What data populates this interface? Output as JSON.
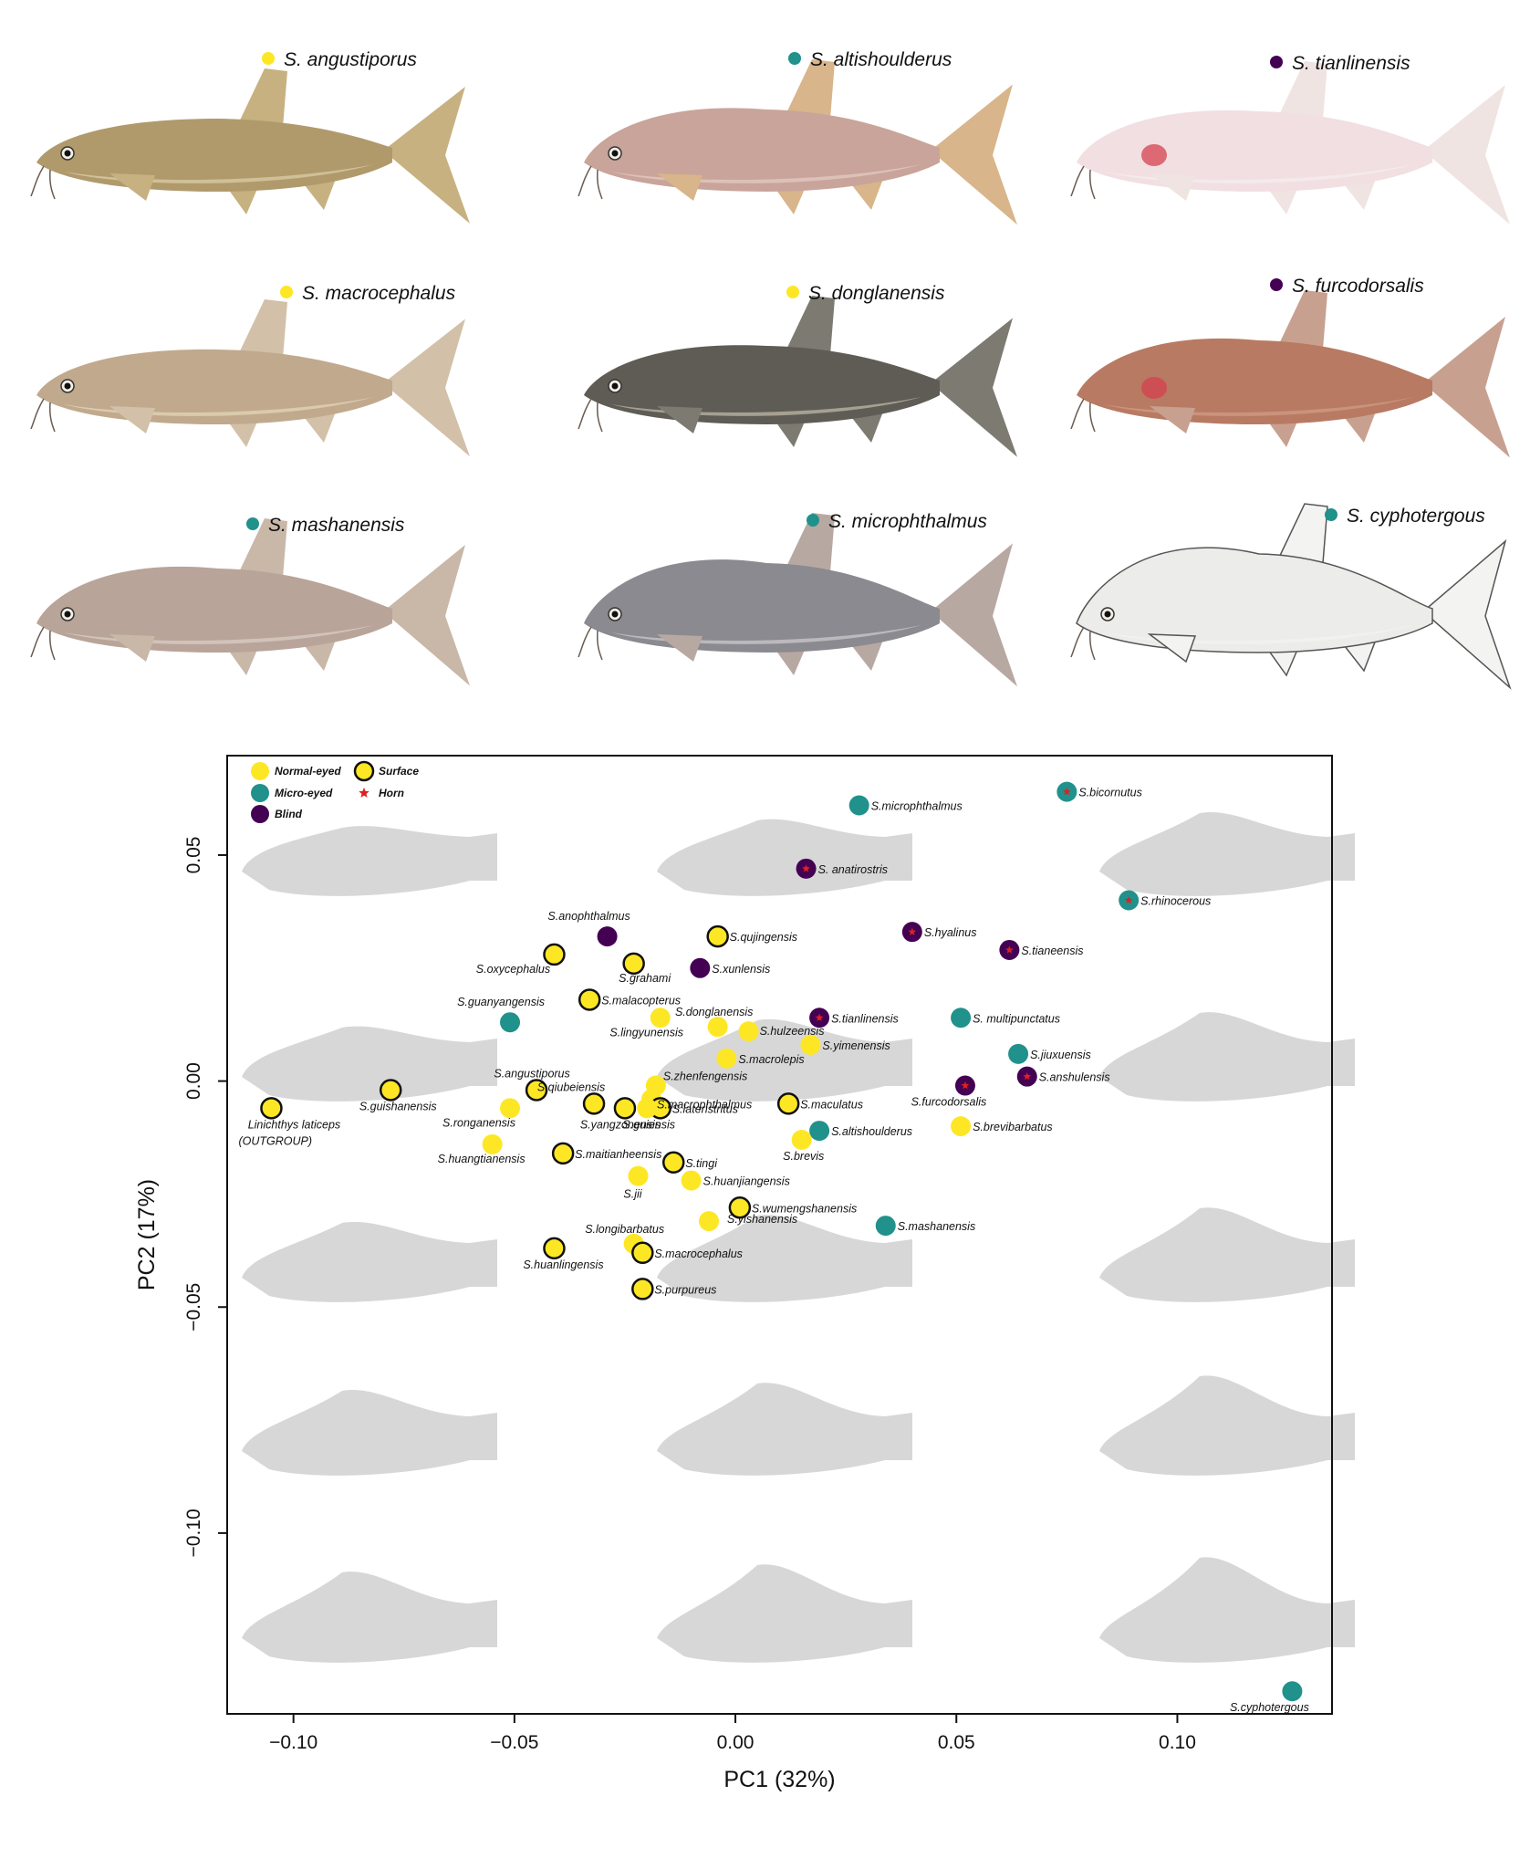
{
  "gallery": [
    {
      "id": "angustiporus",
      "name": "S. angustiporus",
      "status": "normal",
      "style": "photo",
      "body": "#b09a6c",
      "fin": "#c7b180",
      "belly": "#d8c9a2",
      "eye": true,
      "deep": 0.0
    },
    {
      "id": "altishoulderus",
      "name": "S. altishoulderus",
      "status": "micro",
      "style": "photo",
      "body": "#c9a49a",
      "fin": "#d8b58a",
      "belly": "#e2c8c0",
      "eye": true,
      "deep": 0.25
    },
    {
      "id": "tianlinensis",
      "name": "S. tianlinensis",
      "status": "blind",
      "style": "photo",
      "body": "#f1dfe1",
      "fin": "#efe4e2",
      "belly": "#f6ecee",
      "eye": false,
      "deep": 0.2
    },
    {
      "id": "macrocephalus",
      "name": "S. macrocephalus",
      "status": "normal",
      "style": "photo",
      "body": "#c1a98d",
      "fin": "#d2c0a8",
      "belly": "#e0d2b6",
      "eye": true,
      "deep": 0.05
    },
    {
      "id": "donglanensis",
      "name": "S. donglanensis",
      "status": "normal",
      "style": "photo",
      "body": "#5e5c55",
      "fin": "#7d7a72",
      "belly": "#b8b2a2",
      "eye": true,
      "deep": 0.15
    },
    {
      "id": "furcodorsalis",
      "name": "S. furcodorsalis",
      "status": "blind",
      "style": "photo",
      "body": "#b87a62",
      "fin": "#c8a090",
      "belly": "#cf9a85",
      "eye": false,
      "deep": 0.3
    },
    {
      "id": "mashanensis",
      "name": "S. mashanensis",
      "status": "micro",
      "style": "photo",
      "body": "#b9a49a",
      "fin": "#c9b7a8",
      "belly": "#d8cbc2",
      "eye": true,
      "deep": 0.3
    },
    {
      "id": "microphthalmus",
      "name": "S. microphthalmus",
      "status": "micro",
      "style": "photo",
      "body": "#8a8a90",
      "fin": "#b8a8a2",
      "belly": "#c8c4c8",
      "eye": true,
      "deep": 0.45
    },
    {
      "id": "cyphotergous",
      "name": "S. cyphotergous",
      "status": "micro",
      "style": "drawing",
      "body": "#ececea",
      "fin": "#f3f3f1",
      "belly": "#f2f2f0",
      "eye": true,
      "deep": 0.7
    }
  ],
  "legend": {
    "normal": "Normal-eyed",
    "micro": "Micro-eyed",
    "blind": "Blind",
    "surface": "Surface",
    "horn": "Horn"
  },
  "colors": {
    "normal": "#fde725",
    "micro": "#21918c",
    "blind": "#440154",
    "horn": "#e02020",
    "outline": "#111111",
    "shape": "#d7d7d7"
  },
  "chart_data": {
    "type": "scatter",
    "xlabel": "PC1 (32%)",
    "ylabel": "PC2 (17%)",
    "xlim": [
      -0.115,
      0.135
    ],
    "ylim": [
      -0.14,
      0.072
    ],
    "xticks": [
      -0.1,
      -0.05,
      0.0,
      0.05,
      0.1
    ],
    "xtick_labels": [
      "−0.10",
      "−0.05",
      "0.00",
      "0.05",
      "0.10"
    ],
    "yticks": [
      -0.1,
      -0.05,
      0.0,
      0.05
    ],
    "ytick_labels": [
      "−0.10",
      "−0.05",
      "0.00",
      "0.05"
    ],
    "grid": false,
    "legend_position": "top-left",
    "points": [
      {
        "label": "S.microphthalmus",
        "x": 0.028,
        "y": 0.061,
        "type": "micro",
        "surface": false,
        "horn": false
      },
      {
        "label": "S.bicornutus",
        "x": 0.075,
        "y": 0.064,
        "type": "micro",
        "surface": false,
        "horn": true
      },
      {
        "label": "S. anatirostris",
        "x": 0.016,
        "y": 0.047,
        "type": "blind",
        "surface": false,
        "horn": true
      },
      {
        "label": "S.rhinocerous",
        "x": 0.089,
        "y": 0.04,
        "type": "micro",
        "surface": false,
        "horn": true
      },
      {
        "label": "S.anophthalmus",
        "x": -0.029,
        "y": 0.032,
        "type": "blind",
        "surface": false,
        "horn": false
      },
      {
        "label": "S.qujingensis",
        "x": -0.004,
        "y": 0.032,
        "type": "normal",
        "surface": true,
        "horn": false
      },
      {
        "label": "S.hyalinus",
        "x": 0.04,
        "y": 0.033,
        "type": "blind",
        "surface": false,
        "horn": true
      },
      {
        "label": "S.tianeensis",
        "x": 0.062,
        "y": 0.029,
        "type": "blind",
        "surface": false,
        "horn": true
      },
      {
        "label": "S.oxycephalus",
        "x": -0.041,
        "y": 0.028,
        "type": "normal",
        "surface": true,
        "horn": false
      },
      {
        "label": "S.grahami",
        "x": -0.023,
        "y": 0.026,
        "type": "normal",
        "surface": true,
        "horn": false
      },
      {
        "label": "S.xunlensis",
        "x": -0.008,
        "y": 0.025,
        "type": "blind",
        "surface": false,
        "horn": false
      },
      {
        "label": "S.malacopterus",
        "x": -0.033,
        "y": 0.018,
        "type": "normal",
        "surface": true,
        "horn": false
      },
      {
        "label": "S.guanyangensis",
        "x": -0.051,
        "y": 0.013,
        "type": "micro",
        "surface": false,
        "horn": false
      },
      {
        "label": "S.lingyunensis",
        "x": -0.017,
        "y": 0.014,
        "type": "normal",
        "surface": false,
        "horn": false
      },
      {
        "label": "S.donglanensis",
        "x": -0.004,
        "y": 0.012,
        "type": "normal",
        "surface": false,
        "horn": false
      },
      {
        "label": "S.hulzeensis",
        "x": 0.003,
        "y": 0.011,
        "type": "normal",
        "surface": false,
        "horn": false
      },
      {
        "label": "S.tianlinensis",
        "x": 0.019,
        "y": 0.014,
        "type": "blind",
        "surface": false,
        "horn": true
      },
      {
        "label": "S. multipunctatus",
        "x": 0.051,
        "y": 0.014,
        "type": "micro",
        "surface": false,
        "horn": false
      },
      {
        "label": "S.yimenensis",
        "x": 0.017,
        "y": 0.008,
        "type": "normal",
        "surface": false,
        "horn": false
      },
      {
        "label": "S.macrolepis",
        "x": -0.002,
        "y": 0.005,
        "type": "normal",
        "surface": false,
        "horn": false
      },
      {
        "label": "S.jiuxuensis",
        "x": 0.064,
        "y": 0.006,
        "type": "micro",
        "surface": false,
        "horn": false
      },
      {
        "label": "S.anshulensis",
        "x": 0.066,
        "y": 0.001,
        "type": "blind",
        "surface": false,
        "horn": true
      },
      {
        "label": "S.furcodorsalis",
        "x": 0.052,
        "y": -0.001,
        "type": "blind",
        "surface": false,
        "horn": true
      },
      {
        "label": "S.guishanensis",
        "x": -0.078,
        "y": -0.002,
        "type": "normal",
        "surface": true,
        "horn": false
      },
      {
        "label": "S.angustiporus",
        "x": -0.045,
        "y": -0.002,
        "type": "normal",
        "surface": true,
        "horn": false
      },
      {
        "label": "S.zhenfengensis",
        "x": -0.018,
        "y": -0.001,
        "type": "normal",
        "surface": false,
        "horn": false
      },
      {
        "label": "S.qiubeiensis",
        "x": -0.032,
        "y": -0.005,
        "type": "normal",
        "surface": true,
        "horn": false
      },
      {
        "label": "S.macrophthalmus",
        "x": -0.019,
        "y": -0.004,
        "type": "normal",
        "surface": false,
        "horn": false
      },
      {
        "label": "S.lateristritus",
        "x": -0.017,
        "y": -0.006,
        "type": "normal",
        "surface": true,
        "horn": false
      },
      {
        "label": "S.maculatus",
        "x": 0.012,
        "y": -0.005,
        "type": "normal",
        "surface": true,
        "horn": false
      },
      {
        "label": "S.yangzonensis",
        "x": -0.025,
        "y": -0.006,
        "type": "normal",
        "surface": true,
        "horn": false
      },
      {
        "label": "S.guiensis",
        "x": -0.02,
        "y": -0.006,
        "type": "normal",
        "surface": false,
        "horn": false
      },
      {
        "label": "Linichthys laticeps",
        "x": -0.105,
        "y": -0.006,
        "type": "normal",
        "surface": true,
        "horn": false
      },
      {
        "label": "(OUTGROUP)",
        "x": null,
        "y": null,
        "type": "note",
        "surface": false,
        "horn": false
      },
      {
        "label": "S.ronganensis",
        "x": -0.051,
        "y": -0.006,
        "type": "normal",
        "surface": false,
        "horn": false
      },
      {
        "label": "S.altishoulderus",
        "x": 0.019,
        "y": -0.011,
        "type": "micro",
        "surface": false,
        "horn": false
      },
      {
        "label": "S.brevibarbatus",
        "x": 0.051,
        "y": -0.01,
        "type": "normal",
        "surface": false,
        "horn": false
      },
      {
        "label": "S.brevis",
        "x": 0.015,
        "y": -0.013,
        "type": "normal",
        "surface": false,
        "horn": false
      },
      {
        "label": "S.huangtianensis",
        "x": -0.055,
        "y": -0.014,
        "type": "normal",
        "surface": false,
        "horn": false
      },
      {
        "label": "S.maitianheensis",
        "x": -0.039,
        "y": -0.016,
        "type": "normal",
        "surface": true,
        "horn": false
      },
      {
        "label": "S.tingi",
        "x": -0.014,
        "y": -0.018,
        "type": "normal",
        "surface": true,
        "horn": false
      },
      {
        "label": "S.jii",
        "x": -0.022,
        "y": -0.021,
        "type": "normal",
        "surface": false,
        "horn": false
      },
      {
        "label": "S.huanjiangensis",
        "x": -0.01,
        "y": -0.022,
        "type": "normal",
        "surface": false,
        "horn": false
      },
      {
        "label": "S.wumengshanensis",
        "x": 0.001,
        "y": -0.028,
        "type": "normal",
        "surface": true,
        "horn": false
      },
      {
        "label": "S.yishanensis",
        "x": -0.006,
        "y": -0.031,
        "type": "normal",
        "surface": false,
        "horn": false
      },
      {
        "label": "S.mashanensis",
        "x": 0.034,
        "y": -0.032,
        "type": "micro",
        "surface": false,
        "horn": false
      },
      {
        "label": "S.longibarbatus",
        "x": -0.023,
        "y": -0.036,
        "type": "normal",
        "surface": false,
        "horn": false
      },
      {
        "label": "S.huanlingensis",
        "x": -0.041,
        "y": -0.037,
        "type": "normal",
        "surface": true,
        "horn": false
      },
      {
        "label": "S.macrocephalus",
        "x": -0.021,
        "y": -0.038,
        "type": "normal",
        "surface": true,
        "horn": false
      },
      {
        "label": "S.purpureus",
        "x": -0.021,
        "y": -0.046,
        "type": "normal",
        "surface": true,
        "horn": false
      },
      {
        "label": "S.cyphotergous",
        "x": 0.126,
        "y": -0.135,
        "type": "micro",
        "surface": false,
        "horn": false
      }
    ]
  }
}
